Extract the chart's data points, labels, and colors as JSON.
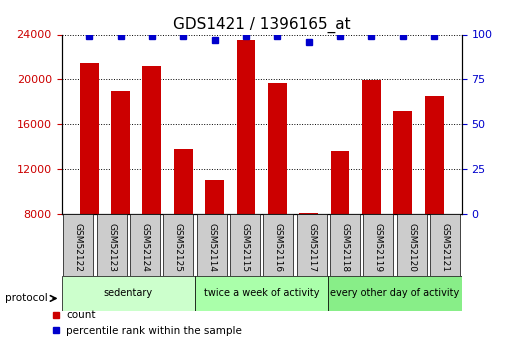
{
  "title": "GDS1421 / 1396165_at",
  "categories": [
    "GSM52122",
    "GSM52123",
    "GSM52124",
    "GSM52125",
    "GSM52114",
    "GSM52115",
    "GSM52116",
    "GSM52117",
    "GSM52118",
    "GSM52119",
    "GSM52120",
    "GSM52121"
  ],
  "bar_values": [
    21500,
    19000,
    21200,
    13800,
    11000,
    23500,
    19700,
    8100,
    13600,
    19900,
    17200,
    18500
  ],
  "percentile_values": [
    99,
    99,
    99,
    99,
    97,
    99,
    99,
    96,
    99,
    99,
    99,
    99
  ],
  "bar_color": "#cc0000",
  "dot_color": "#0000cc",
  "ylim_left": [
    8000,
    24000
  ],
  "yticks_left": [
    8000,
    12000,
    16000,
    20000,
    24000
  ],
  "ylim_right": [
    0,
    100
  ],
  "yticks_right": [
    0,
    25,
    50,
    75,
    100
  ],
  "groups": [
    {
      "label": "sedentary",
      "start": 0,
      "end": 4,
      "color": "#ccffcc"
    },
    {
      "label": "twice a week of activity",
      "start": 4,
      "end": 8,
      "color": "#aaffaa"
    },
    {
      "label": "every other day of activity",
      "start": 8,
      "end": 12,
      "color": "#88ee88"
    }
  ],
  "protocol_label": "protocol",
  "legend_count_label": "count",
  "legend_percentile_label": "percentile rank within the sample",
  "bar_width": 0.6,
  "figsize": [
    5.13,
    3.45
  ],
  "dpi": 100,
  "xlabel_color": "#cc0000",
  "ylabel_right_color": "#0000cc",
  "tick_label_bg": "#cccccc",
  "title_fontsize": 11,
  "axis_label_fontsize": 9,
  "tick_fontsize": 8
}
